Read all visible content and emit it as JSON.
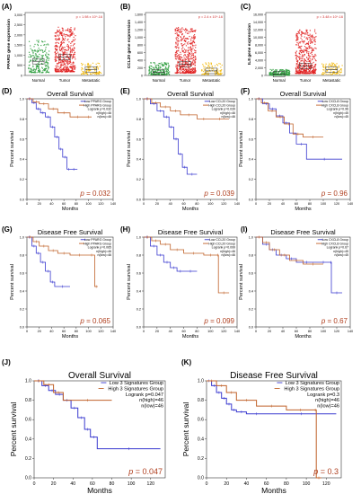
{
  "colors": {
    "normal": "#2e9e3e",
    "tumor": "#e02020",
    "metastatic": "#f2b705",
    "low_group": "#3a3acf",
    "high_group": "#c0622a",
    "pvalue": "#b04020"
  },
  "chart_data": [
    {
      "type": "scatter",
      "panel_label": "(A)",
      "ylabel": "PPARG gene expression",
      "annotation": "p = 1.98 x 10^-16",
      "categories": [
        "Normal",
        "Tumor",
        "Metastatic"
      ],
      "yticks": [
        "0",
        "500",
        "1,000",
        "1,500",
        "2,000",
        "2,500",
        "3,000"
      ],
      "ylim": [
        0,
        3100
      ],
      "groups": [
        {
          "name": "Normal",
          "center": 700,
          "spread": 900,
          "n": 220
        },
        {
          "name": "Tumor",
          "center": 900,
          "spread": 1300,
          "n": 480
        },
        {
          "name": "Metastatic",
          "center": 300,
          "spread": 250,
          "n": 90
        }
      ]
    },
    {
      "type": "scatter",
      "panel_label": "(B)",
      "ylabel": "CCL20 gene expression",
      "annotation": "p = 2.4 x 10^-16",
      "categories": [
        "Normal",
        "Tumor",
        "Metastatic"
      ],
      "yticks": [
        "0",
        "200",
        "400",
        "600",
        "800",
        "1,000",
        "1,200",
        "1,400",
        "1,600"
      ],
      "ylim": [
        0,
        1650
      ],
      "groups": [
        {
          "name": "Normal",
          "center": 80,
          "spread": 250,
          "n": 200
        },
        {
          "name": "Tumor",
          "center": 300,
          "spread": 900,
          "n": 480
        },
        {
          "name": "Metastatic",
          "center": 120,
          "spread": 200,
          "n": 90
        }
      ]
    },
    {
      "type": "scatter",
      "panel_label": "(C)",
      "ylabel": "IL8 gene expression",
      "annotation": "p = 3.48 x 10^-16",
      "categories": [
        "Normal",
        "Tumor",
        "Metastatic"
      ],
      "yticks": [
        "0",
        "2,000",
        "4,000",
        "6,000",
        "8,000",
        "10,000",
        "12,000",
        "14,000",
        "16,000"
      ],
      "ylim": [
        0,
        16500
      ],
      "groups": [
        {
          "name": "Normal",
          "center": 300,
          "spread": 1200,
          "n": 200
        },
        {
          "name": "Tumor",
          "center": 2500,
          "spread": 9000,
          "n": 480
        },
        {
          "name": "Metastatic",
          "center": 1500,
          "spread": 1500,
          "n": 90
        }
      ]
    },
    {
      "type": "line",
      "panel_label": "(D)",
      "title": "Overall Survival",
      "xlabel": "Months",
      "ylabel": "Percent survival",
      "xticks": [
        "0",
        "20",
        "40",
        "60",
        "80",
        "100",
        "120",
        "140"
      ],
      "yticks": [
        "0.0",
        "0.2",
        "0.4",
        "0.6",
        "0.8",
        "1.0"
      ],
      "xlim": [
        0,
        140
      ],
      "ylim": [
        0,
        1.0
      ],
      "legend": [
        "Low PPARG Group",
        "High PPARG Group",
        "Logrank p=0.032",
        "n(high)=46",
        "n(low)=46"
      ],
      "p_text": "p = 0.032",
      "series": [
        {
          "name": "Low PPARG Group",
          "x": [
            0,
            8,
            15,
            22,
            30,
            38,
            45,
            52,
            58,
            65,
            70,
            82
          ],
          "y": [
            1.0,
            0.96,
            0.9,
            0.86,
            0.82,
            0.72,
            0.62,
            0.5,
            0.42,
            0.3,
            0.3,
            0.3
          ]
        },
        {
          "name": "High PPARG Group",
          "x": [
            0,
            10,
            20,
            35,
            50,
            70,
            95,
            105
          ],
          "y": [
            1.0,
            0.97,
            0.95,
            0.9,
            0.86,
            0.82,
            0.82,
            0.82
          ]
        }
      ]
    },
    {
      "type": "line",
      "panel_label": "(E)",
      "title": "Overall Survival",
      "xlabel": "Months",
      "ylabel": "Percent survival",
      "xticks": [
        "0",
        "20",
        "40",
        "60",
        "80",
        "100",
        "120",
        "140"
      ],
      "yticks": [
        "0.0",
        "0.2",
        "0.4",
        "0.6",
        "0.8",
        "1.0"
      ],
      "xlim": [
        0,
        140
      ],
      "ylim": [
        0,
        1.0
      ],
      "legend": [
        "Low CCL20 Group",
        "High CCL20 Group",
        "Logrank p=0.039",
        "n(high)=46",
        "n(low)=46"
      ],
      "p_text": "p = 0.039",
      "series": [
        {
          "name": "Low CCL20 Group",
          "x": [
            0,
            10,
            20,
            30,
            38,
            45,
            52,
            58,
            65,
            80
          ],
          "y": [
            1.0,
            0.95,
            0.88,
            0.82,
            0.72,
            0.6,
            0.45,
            0.32,
            0.25,
            0.25
          ]
        },
        {
          "name": "High CCL20 Group",
          "x": [
            0,
            12,
            25,
            40,
            55,
            80,
            100,
            128
          ],
          "y": [
            1.0,
            0.96,
            0.92,
            0.88,
            0.84,
            0.8,
            0.8,
            0.8
          ]
        }
      ]
    },
    {
      "type": "line",
      "panel_label": "(F)",
      "title": "Overall Survival",
      "xlabel": "Months",
      "ylabel": "Percent survival",
      "xticks": [
        "0",
        "20",
        "40",
        "60",
        "80",
        "100",
        "120",
        "140"
      ],
      "yticks": [
        "0.0",
        "0.2",
        "0.4",
        "0.6",
        "0.8",
        "1.0"
      ],
      "xlim": [
        0,
        140
      ],
      "ylim": [
        0,
        1.0
      ],
      "legend": [
        "Low CXCL8 Group",
        "High CXCL8 Group",
        "Logrank p=0.96",
        "n(high)=45",
        "n(low)=45"
      ],
      "p_text": "p = 0.96",
      "series": [
        {
          "name": "Low CXCL8 Group",
          "x": [
            0,
            10,
            20,
            30,
            40,
            50,
            60,
            75,
            128
          ],
          "y": [
            1.0,
            0.95,
            0.9,
            0.83,
            0.76,
            0.66,
            0.55,
            0.4,
            0.4
          ]
        },
        {
          "name": "High CXCL8 Group",
          "x": [
            0,
            8,
            18,
            30,
            42,
            55,
            70,
            100
          ],
          "y": [
            1.0,
            0.96,
            0.88,
            0.82,
            0.75,
            0.65,
            0.62,
            0.62
          ]
        }
      ]
    },
    {
      "type": "line",
      "panel_label": "(G)",
      "title": "Disease Free Survival",
      "xlabel": "Months",
      "ylabel": "Percent survival",
      "xticks": [
        "0",
        "20",
        "40",
        "60",
        "80",
        "100",
        "120",
        "140"
      ],
      "yticks": [
        "0.0",
        "0.2",
        "0.4",
        "0.6",
        "0.8",
        "1.0"
      ],
      "xlim": [
        0,
        140
      ],
      "ylim": [
        0,
        1.0
      ],
      "legend": [
        "Low PPARG Group",
        "High PPARG Group",
        "Logrank p=0.065",
        "n(high)=46",
        "n(low)=46"
      ],
      "p_text": "p = 0.065",
      "series": [
        {
          "name": "Low PPARG Group",
          "x": [
            0,
            8,
            15,
            22,
            30,
            38,
            45,
            70
          ],
          "y": [
            1.0,
            0.9,
            0.82,
            0.72,
            0.62,
            0.5,
            0.45,
            0.45
          ]
        },
        {
          "name": "High PPARG Group",
          "x": [
            0,
            10,
            20,
            35,
            50,
            70,
            100,
            110,
            115
          ],
          "y": [
            1.0,
            0.95,
            0.9,
            0.85,
            0.82,
            0.8,
            0.8,
            0.45,
            0.45
          ]
        }
      ]
    },
    {
      "type": "line",
      "panel_label": "(H)",
      "title": "Disease Free Survival",
      "xlabel": "Months",
      "ylabel": "Percent survival",
      "xticks": [
        "0",
        "20",
        "40",
        "60",
        "80",
        "100",
        "120",
        "140"
      ],
      "yticks": [
        "0.0",
        "0.2",
        "0.4",
        "0.6",
        "0.8",
        "1.0"
      ],
      "xlim": [
        0,
        140
      ],
      "ylim": [
        0,
        1.0
      ],
      "legend": [
        "Low CCL20 Group",
        "High CCL20 Group",
        "Logrank p=0.099",
        "n(high)=46",
        "n(low)=46"
      ],
      "p_text": "p = 0.099",
      "series": [
        {
          "name": "Low CCL20 Group",
          "x": [
            0,
            10,
            20,
            30,
            40,
            50,
            60,
            80
          ],
          "y": [
            1.0,
            0.9,
            0.8,
            0.72,
            0.66,
            0.62,
            0.62,
            0.62
          ]
        },
        {
          "name": "High CCL20 Group",
          "x": [
            0,
            12,
            25,
            40,
            60,
            90,
            110,
            112,
            128
          ],
          "y": [
            1.0,
            0.96,
            0.92,
            0.86,
            0.82,
            0.8,
            0.8,
            0.38,
            0.38
          ]
        }
      ]
    },
    {
      "type": "line",
      "panel_label": "(I)",
      "title": "Disease Free Survival",
      "xlabel": "Months",
      "ylabel": "Percent survival",
      "xticks": [
        "0",
        "20",
        "40",
        "60",
        "80",
        "100",
        "120",
        "140"
      ],
      "yticks": [
        "0.0",
        "0.2",
        "0.4",
        "0.6",
        "0.8",
        "1.0"
      ],
      "xlim": [
        0,
        140
      ],
      "ylim": [
        0,
        1.0
      ],
      "legend": [
        "Low CXCL8 Group",
        "High CXCL8 Group",
        "Logrank p=0.67",
        "n(high)=45",
        "n(low)=45"
      ],
      "p_text": "p = 0.67",
      "series": [
        {
          "name": "Low CXCL8 Group",
          "x": [
            0,
            10,
            20,
            30,
            45,
            60,
            90,
            110,
            112,
            128
          ],
          "y": [
            1.0,
            0.92,
            0.86,
            0.8,
            0.76,
            0.72,
            0.72,
            0.72,
            0.38,
            0.38
          ]
        },
        {
          "name": "High CXCL8 Group",
          "x": [
            0,
            10,
            20,
            35,
            50,
            70,
            100
          ],
          "y": [
            1.0,
            0.94,
            0.86,
            0.8,
            0.74,
            0.7,
            0.7
          ]
        }
      ]
    },
    {
      "type": "line",
      "panel_label": "(J)",
      "title": "Overall Survival",
      "xlabel": "Months",
      "ylabel": "Percent survival",
      "xticks": [
        "0",
        "20",
        "40",
        "60",
        "80",
        "100",
        "120"
      ],
      "yticks": [
        "0.0",
        "0.2",
        "0.4",
        "0.6",
        "0.8",
        "1.0"
      ],
      "xlim": [
        0,
        135
      ],
      "ylim": [
        0,
        1.0
      ],
      "legend": [
        "Low 3 Signatures Group",
        "High 3 Signatures Group",
        "Logrank p=0.047",
        "n(high)=46",
        "n(low)=46"
      ],
      "p_text": "p = 0.047",
      "series": [
        {
          "name": "Low 3 Signatures Group",
          "x": [
            0,
            8,
            15,
            22,
            30,
            38,
            45,
            52,
            58,
            65,
            130
          ],
          "y": [
            1.0,
            0.95,
            0.9,
            0.86,
            0.8,
            0.72,
            0.62,
            0.5,
            0.42,
            0.3,
            0.3
          ]
        },
        {
          "name": "High 3 Signatures Group",
          "x": [
            0,
            10,
            20,
            30,
            80
          ],
          "y": [
            1.0,
            0.96,
            0.88,
            0.8,
            0.8
          ]
        }
      ]
    },
    {
      "type": "line",
      "panel_label": "(K)",
      "title": "Disease Free Survival",
      "xlabel": "Months",
      "ylabel": "Percent survival",
      "xticks": [
        "0",
        "20",
        "40",
        "60",
        "80",
        "100",
        "120"
      ],
      "yticks": [
        "0.0",
        "0.2",
        "0.4",
        "0.6",
        "0.8",
        "1.0"
      ],
      "xlim": [
        0,
        135
      ],
      "ylim": [
        0,
        1.0
      ],
      "legend": [
        "Low 3 Signatures Group",
        "High 3 Signatures Group",
        "Logrank p=0.3",
        "n(high)=46",
        "n(low)=46"
      ],
      "p_text": "p = 0.3",
      "series": [
        {
          "name": "Low 3 Signatures Group",
          "x": [
            0,
            5,
            10,
            15,
            20,
            25,
            30,
            40,
            60,
            130
          ],
          "y": [
            1.0,
            0.95,
            0.88,
            0.82,
            0.76,
            0.7,
            0.68,
            0.66,
            0.66,
            0.66
          ]
        },
        {
          "name": "High 3 Signatures Group",
          "x": [
            0,
            10,
            20,
            30,
            50,
            80,
            108,
            110,
            115
          ],
          "y": [
            1.0,
            0.95,
            0.88,
            0.8,
            0.74,
            0.7,
            0.7,
            0.0,
            0.0
          ]
        }
      ]
    }
  ]
}
